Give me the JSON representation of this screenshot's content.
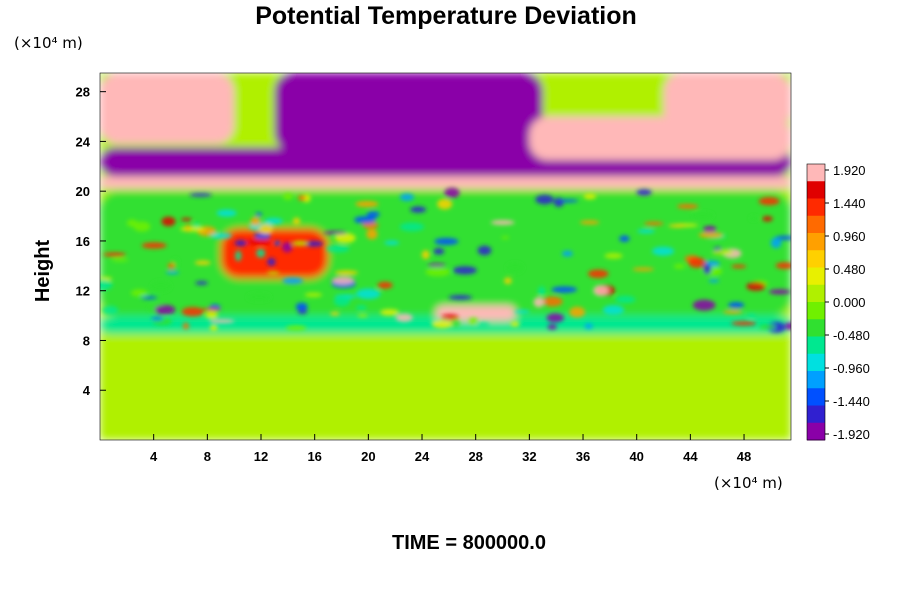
{
  "chart_data": {
    "type": "heatmap",
    "title": "Potential Temperature Deviation",
    "xlabel": "",
    "ylabel": "Height",
    "x_unit": "(×10⁴ m)",
    "y_unit": "(×10⁴ m)",
    "x_ticks": [
      4,
      8,
      12,
      16,
      20,
      24,
      28,
      32,
      36,
      40,
      44,
      48
    ],
    "y_ticks": [
      4,
      8,
      12,
      16,
      20,
      24,
      28
    ],
    "xlim": [
      0,
      51.5
    ],
    "ylim": [
      0,
      29.5
    ],
    "colorbar": {
      "min": -1.92,
      "max": 1.92,
      "tick_labels": [
        "1.920",
        "1.440",
        "0.960",
        "0.480",
        "0.000",
        "-0.480",
        "-0.960",
        "-1.440",
        "-1.920"
      ],
      "colors": [
        "#8a00a8",
        "#3020d0",
        "#0050ff",
        "#00a0ff",
        "#00e0e0",
        "#00e890",
        "#30e030",
        "#70f000",
        "#b0f000",
        "#e8f000",
        "#ffd000",
        "#ffa000",
        "#ff6a00",
        "#ff2a00",
        "#e00000",
        "#ffb8b8"
      ]
    },
    "regions": [
      {
        "x": [
          0,
          51.5
        ],
        "y": [
          0,
          8.5
        ],
        "value": 0.0
      },
      {
        "x": [
          0,
          51.5
        ],
        "y": [
          8.5,
          10
        ],
        "value": -0.6
      },
      {
        "x": [
          0,
          51.5
        ],
        "y": [
          10,
          20
        ],
        "value": -0.3
      },
      {
        "x": [
          9,
          17
        ],
        "y": [
          13,
          17
        ],
        "value": 1.2
      },
      {
        "x": [
          25,
          31
        ],
        "y": [
          9.6,
          10.8
        ],
        "value": 1.92
      },
      {
        "x": [
          0,
          51.5
        ],
        "y": [
          20.2,
          21.2
        ],
        "value": 1.92
      },
      {
        "x": [
          0,
          51.5
        ],
        "y": [
          21.2,
          23.5
        ],
        "value": -1.92
      },
      {
        "x": [
          0,
          10
        ],
        "y": [
          23.8,
          29.5
        ],
        "value": 1.92
      },
      {
        "x": [
          13,
          33
        ],
        "y": [
          23.2,
          29.5
        ],
        "value": -1.92
      },
      {
        "x": [
          32,
          51.5
        ],
        "y": [
          22.5,
          26
        ],
        "value": 1.92
      },
      {
        "x": [
          42,
          51.5
        ],
        "y": [
          25,
          29.5
        ],
        "value": 1.92
      }
    ]
  },
  "footer": "TIME = 800000.0"
}
